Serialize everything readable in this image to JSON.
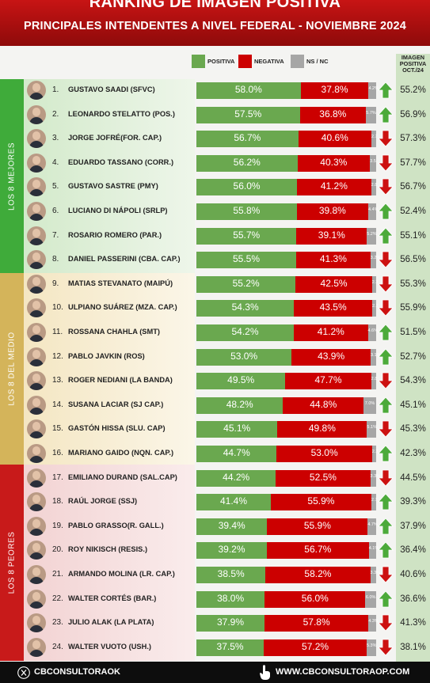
{
  "header": {
    "title": "RANKING DE IMAGEN POSITIVA",
    "subtitle": "PRINCIPALES INTENDENTES A NIVEL FEDERAL - NOVIEMBRE 2024"
  },
  "legend": {
    "positiva": "POSITIVA",
    "negativa": "NEGATIVA",
    "nsnc": "NS / NC"
  },
  "prev_header": [
    "IMAGEN",
    "POSITIVA",
    "OCT./24"
  ],
  "groups": [
    {
      "label": "LOS 8 MEJORES"
    },
    {
      "label": "LOS 8 DEL MEDIO"
    },
    {
      "label": "LOS 8 PEORES"
    }
  ],
  "colors": {
    "positiva": "#6aa84f",
    "negativa": "#cc0000",
    "nsnc": "#a6a6a6",
    "up": "#4caa3a",
    "down": "#cc1111",
    "group_top": "#3fab3a",
    "group_mid": "#d4b45a",
    "group_low": "#c81a1a"
  },
  "footer": {
    "left": "CBCONSULTORAOK",
    "right": "WWW.CBCONSULTORAOP.COM"
  },
  "chart_data": {
    "type": "bar",
    "title": "RANKING DE IMAGEN POSITIVA",
    "subtitle": "PRINCIPALES INTENDENTES A NIVEL FEDERAL - NOVIEMBRE 2024",
    "stacked": true,
    "orientation": "horizontal",
    "series_names": [
      "POSITIVA",
      "NEGATIVA",
      "NS / NC"
    ],
    "rows": [
      {
        "rank": "1.",
        "name": "GUSTAVO SAADI (SFVC)",
        "pos": 58.0,
        "neg": 37.8,
        "ns": 4.2,
        "pos_label": "58.0%",
        "neg_label": "37.8%",
        "ns_label": "4.2%",
        "trend": "up",
        "prev": "55.2%"
      },
      {
        "rank": "2.",
        "name": "LEONARDO STELATTO (POS.)",
        "pos": 57.5,
        "neg": 36.8,
        "ns": 5.7,
        "pos_label": "57.5%",
        "neg_label": "36.8%",
        "ns_label": "5.7%",
        "trend": "up",
        "prev": "56.9%"
      },
      {
        "rank": "3.",
        "name": "JORGE JOFRÉ(FOR. CAP.)",
        "pos": 56.7,
        "neg": 40.6,
        "ns": 2.7,
        "pos_label": "56.7%",
        "neg_label": "40.6%",
        "ns_label": "2.7",
        "trend": "down",
        "prev": "57.3%"
      },
      {
        "rank": "4.",
        "name": "EDUARDO TASSANO (CORR.)",
        "pos": 56.2,
        "neg": 40.3,
        "ns": 3.5,
        "pos_label": "56.2%",
        "neg_label": "40.3%",
        "ns_label": "3.5",
        "trend": "down",
        "prev": "57.7%"
      },
      {
        "rank": "5.",
        "name": "GUSTAVO SASTRE (PMY)",
        "pos": 56.0,
        "neg": 41.2,
        "ns": 2.8,
        "pos_label": "56.0%",
        "neg_label": "41.2%",
        "ns_label": "2.8",
        "trend": "down",
        "prev": "56.7%"
      },
      {
        "rank": "6.",
        "name": "LUCIANO DI NÁPOLI (SRLP)",
        "pos": 55.8,
        "neg": 39.8,
        "ns": 4.4,
        "pos_label": "55.8%",
        "neg_label": "39.8%",
        "ns_label": "4.4%",
        "trend": "up",
        "prev": "52.4%"
      },
      {
        "rank": "7.",
        "name": "ROSARIO ROMERO (PAR.)",
        "pos": 55.7,
        "neg": 39.1,
        "ns": 5.2,
        "pos_label": "55.7%",
        "neg_label": "39.1%",
        "ns_label": "5.2%",
        "trend": "up",
        "prev": "55.1%"
      },
      {
        "rank": "8.",
        "name": "DANIEL PASSERINI (CBA. CAP.)",
        "pos": 55.5,
        "neg": 41.3,
        "ns": 3.2,
        "pos_label": "55.5%",
        "neg_label": "41.3%",
        "ns_label": "3.2%",
        "trend": "down",
        "prev": "56.5%"
      },
      {
        "rank": "9.",
        "name": "MATIAS STEVANATO (MAIPÚ)",
        "pos": 55.2,
        "neg": 42.5,
        "ns": 2.3,
        "pos_label": "55.2%",
        "neg_label": "42.5%",
        "ns_label": "2.3",
        "trend": "down",
        "prev": "55.3%"
      },
      {
        "rank": "10.",
        "name": "ULPIANO SUÁREZ (MZA. CAP.)",
        "pos": 54.3,
        "neg": 43.5,
        "ns": 2.2,
        "pos_label": "54.3%",
        "neg_label": "43.5%",
        "ns_label": "2.2",
        "trend": "down",
        "prev": "55.9%"
      },
      {
        "rank": "11.",
        "name": "ROSSANA CHAHLA (SMT)",
        "pos": 54.2,
        "neg": 41.2,
        "ns": 4.6,
        "pos_label": "54.2%",
        "neg_label": "41.2%",
        "ns_label": "4.6%",
        "trend": "up",
        "prev": "51.5%"
      },
      {
        "rank": "12.",
        "name": "PABLO JAVKIN (ROS)",
        "pos": 53.0,
        "neg": 43.9,
        "ns": 3.1,
        "pos_label": "53.0%",
        "neg_label": "43.9%",
        "ns_label": "3.1%",
        "trend": "up",
        "prev": "52.7%"
      },
      {
        "rank": "13.",
        "name": "ROGER NEDIANI (LA BANDA)",
        "pos": 49.5,
        "neg": 47.7,
        "ns": 2.8,
        "pos_label": "49.5%",
        "neg_label": "47.7%",
        "ns_label": "2.8",
        "trend": "down",
        "prev": "54.3%"
      },
      {
        "rank": "14.",
        "name": "SUSANA LACIAR (SJ CAP.)",
        "pos": 48.2,
        "neg": 44.8,
        "ns": 7.0,
        "pos_label": "48.2%",
        "neg_label": "44.8%",
        "ns_label": "7.0%",
        "trend": "up",
        "prev": "45.1%"
      },
      {
        "rank": "15.",
        "name": "GASTÓN HISSA (SLU. CAP)",
        "pos": 45.1,
        "neg": 49.8,
        "ns": 5.1,
        "pos_label": "45.1%",
        "neg_label": "49.8%",
        "ns_label": "5.1%",
        "trend": "down",
        "prev": "45.3%"
      },
      {
        "rank": "16.",
        "name": "MARIANO GAIDO (NQN. CAP.)",
        "pos": 44.7,
        "neg": 53.0,
        "ns": 2.3,
        "pos_label": "44.7%",
        "neg_label": "53.0%",
        "ns_label": "2.3",
        "trend": "up",
        "prev": "42.3%"
      },
      {
        "rank": "17.",
        "name": "EMILIANO DURAND (SAL.CAP)",
        "pos": 44.2,
        "neg": 52.5,
        "ns": 3.3,
        "pos_label": "44.2%",
        "neg_label": "52.5%",
        "ns_label": "3.3%",
        "trend": "down",
        "prev": "44.5%"
      },
      {
        "rank": "18.",
        "name": "RAÚL JORGE (SSJ)",
        "pos": 41.4,
        "neg": 55.9,
        "ns": 2.7,
        "pos_label": "41.4%",
        "neg_label": "55.9%",
        "ns_label": "2.7",
        "trend": "up",
        "prev": "39.3%"
      },
      {
        "rank": "19.",
        "name": "PABLO GRASSO(R. GALL.)",
        "pos": 39.4,
        "neg": 55.9,
        "ns": 4.7,
        "pos_label": "39.4%",
        "neg_label": "55.9%",
        "ns_label": "4.7%",
        "trend": "up",
        "prev": "37.9%"
      },
      {
        "rank": "20.",
        "name": "ROY NIKISCH (RESIS.)",
        "pos": 39.2,
        "neg": 56.7,
        "ns": 4.1,
        "pos_label": "39.2%",
        "neg_label": "56.7%",
        "ns_label": "4.1%",
        "trend": "up",
        "prev": "36.4%"
      },
      {
        "rank": "21.",
        "name": "ARMANDO MOLINA (LR. CAP.)",
        "pos": 38.5,
        "neg": 58.2,
        "ns": 3.3,
        "pos_label": "38.5%",
        "neg_label": "58.2%",
        "ns_label": "3.3%",
        "trend": "down",
        "prev": "40.6%"
      },
      {
        "rank": "22.",
        "name": "WALTER CORTÉS (BAR.)",
        "pos": 38.0,
        "neg": 56.0,
        "ns": 6.0,
        "pos_label": "38.0%",
        "neg_label": "56.0%",
        "ns_label": "6.0%",
        "trend": "up",
        "prev": "36.6%"
      },
      {
        "rank": "23.",
        "name": "JULIO ALAK (LA PLATA)",
        "pos": 37.9,
        "neg": 57.8,
        "ns": 4.3,
        "pos_label": "37.9%",
        "neg_label": "57.8%",
        "ns_label": "4.3%",
        "trend": "down",
        "prev": "41.3%"
      },
      {
        "rank": "24.",
        "name": "WALTER VUOTO (USH.)",
        "pos": 37.5,
        "neg": 57.2,
        "ns": 5.3,
        "pos_label": "37.5%",
        "neg_label": "57.2%",
        "ns_label": "5.3%",
        "trend": "down",
        "prev": "38.1%"
      }
    ]
  }
}
